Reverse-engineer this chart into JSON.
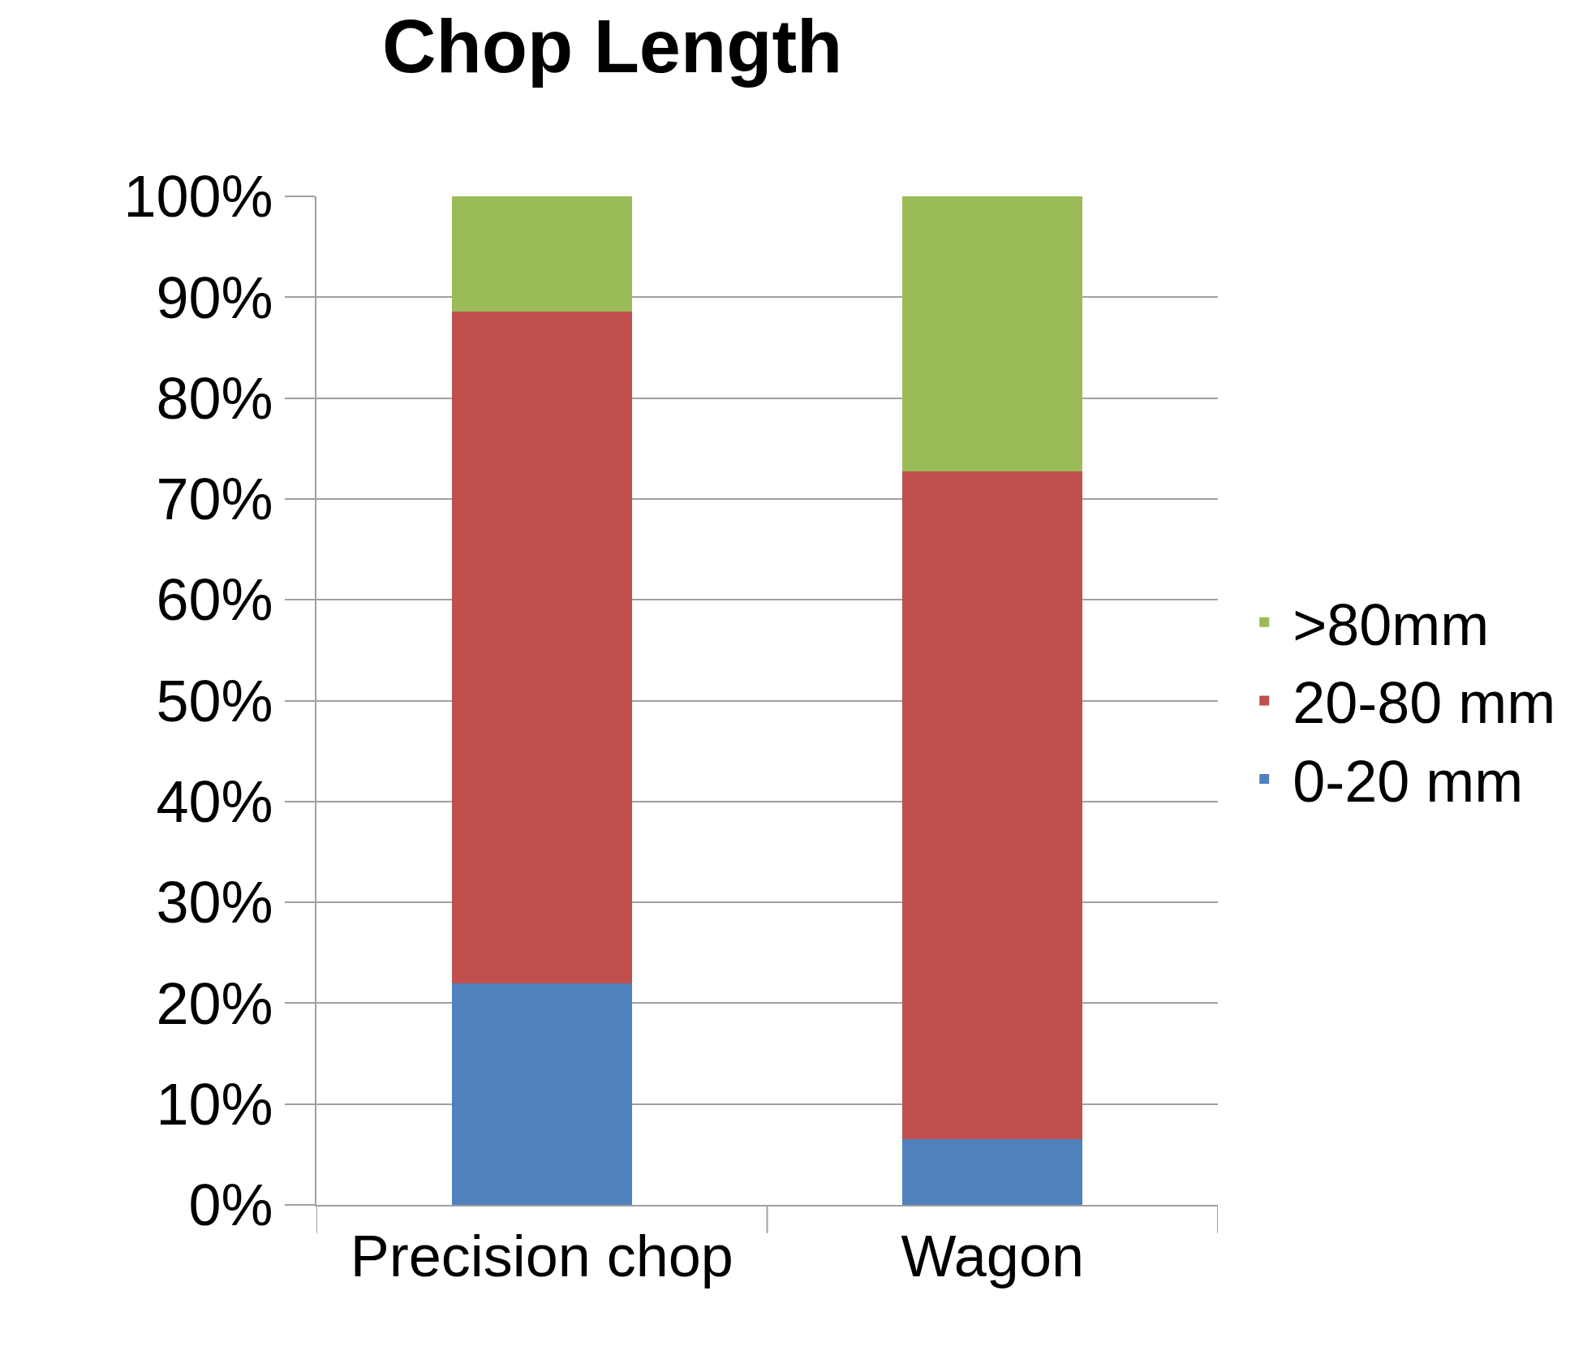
{
  "chart_data": {
    "type": "bar",
    "title": "Chop Length",
    "stacked": true,
    "categories": [
      "Precision chop",
      "Wagon"
    ],
    "series": [
      {
        "name": "0-20 mm",
        "color": "#4f81bd",
        "values": [
          22.0,
          6.5
        ]
      },
      {
        "name": "20-80 mm",
        "color": "#c0504d",
        "values": [
          66.6,
          66.2
        ]
      },
      {
        "name": ">80mm",
        "color": "#9bbb59",
        "values": [
          11.4,
          27.3
        ]
      }
    ],
    "ylim": [
      0,
      100
    ],
    "yticks": [
      {
        "value": 0,
        "label": "0%"
      },
      {
        "value": 10,
        "label": "10%"
      },
      {
        "value": 20,
        "label": "20%"
      },
      {
        "value": 30,
        "label": "30%"
      },
      {
        "value": 40,
        "label": "40%"
      },
      {
        "value": 50,
        "label": "50%"
      },
      {
        "value": 60,
        "label": "60%"
      },
      {
        "value": 70,
        "label": "70%"
      },
      {
        "value": 80,
        "label": "80%"
      },
      {
        "value": 90,
        "label": "90%"
      },
      {
        "value": 100,
        "label": "100%"
      }
    ],
    "grid": "y",
    "legend": "right"
  }
}
